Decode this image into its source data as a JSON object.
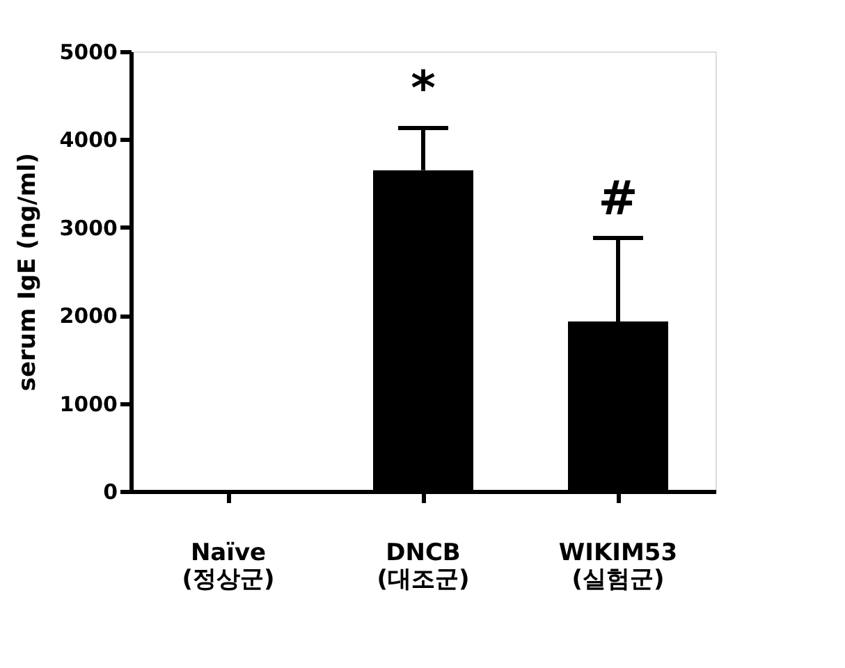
{
  "chart_data": {
    "type": "bar",
    "ylabel": "serum IgE (ng/ml)",
    "categories": [
      "Naïve\n(정상군)",
      "DNCB\n(대조군)",
      "WIKIM53\n(실험군)"
    ],
    "values": [
      0,
      3650,
      1930
    ],
    "color": "#000000",
    "errors": [
      null,
      [
        3650,
        4130
      ],
      [
        1930,
        2880
      ]
    ],
    "ylim": [
      0,
      5000
    ],
    "yticks": [
      0,
      1000,
      2000,
      3000,
      4000,
      5000
    ],
    "grid": false,
    "annotations": [
      {
        "text": "*",
        "x": "DNCB\n(대조군)",
        "y": 4130
      },
      {
        "text": "#",
        "x": "WIKIM53\n(실험군)",
        "y": 2880
      }
    ]
  }
}
